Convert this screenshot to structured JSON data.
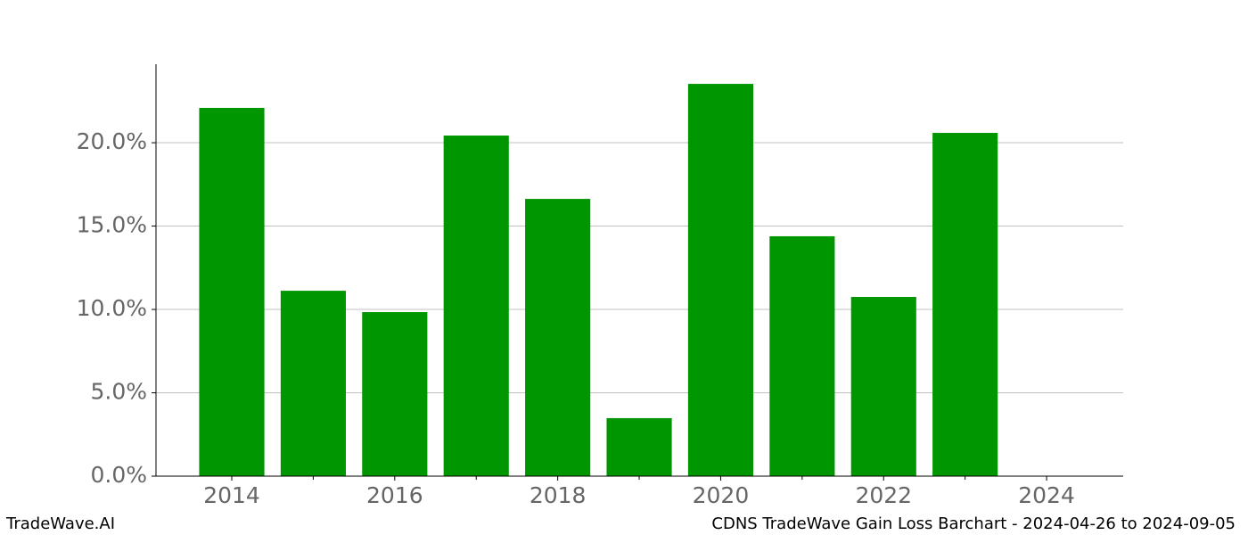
{
  "chart_data": {
    "type": "bar",
    "x": [
      2014,
      2015,
      2016,
      2017,
      2018,
      2019,
      2020,
      2021,
      2022,
      2023
    ],
    "values": [
      22.09,
      11.12,
      9.84,
      20.43,
      16.63,
      3.48,
      23.53,
      14.39,
      10.75,
      20.59
    ],
    "color": "#009600",
    "xlim": [
      2013.07,
      2024.94
    ],
    "xticks": [
      2014,
      2016,
      2018,
      2020,
      2022,
      2024
    ],
    "xticks_minor": [
      2015,
      2017,
      2019,
      2021,
      2023
    ],
    "ylim": [
      0,
      24.71
    ],
    "yticks": [
      {
        "value": 0,
        "label": "0.0%"
      },
      {
        "value": 5,
        "label": "5.0%"
      },
      {
        "value": 10,
        "label": "10.0%"
      },
      {
        "value": 15,
        "label": "15.0%"
      },
      {
        "value": 20,
        "label": "20.0%"
      }
    ],
    "grid": true
  },
  "footer": {
    "left": "TradeWave.AI",
    "right": "CDNS TradeWave Gain Loss Barchart - 2024-04-26 to 2024-09-05"
  }
}
